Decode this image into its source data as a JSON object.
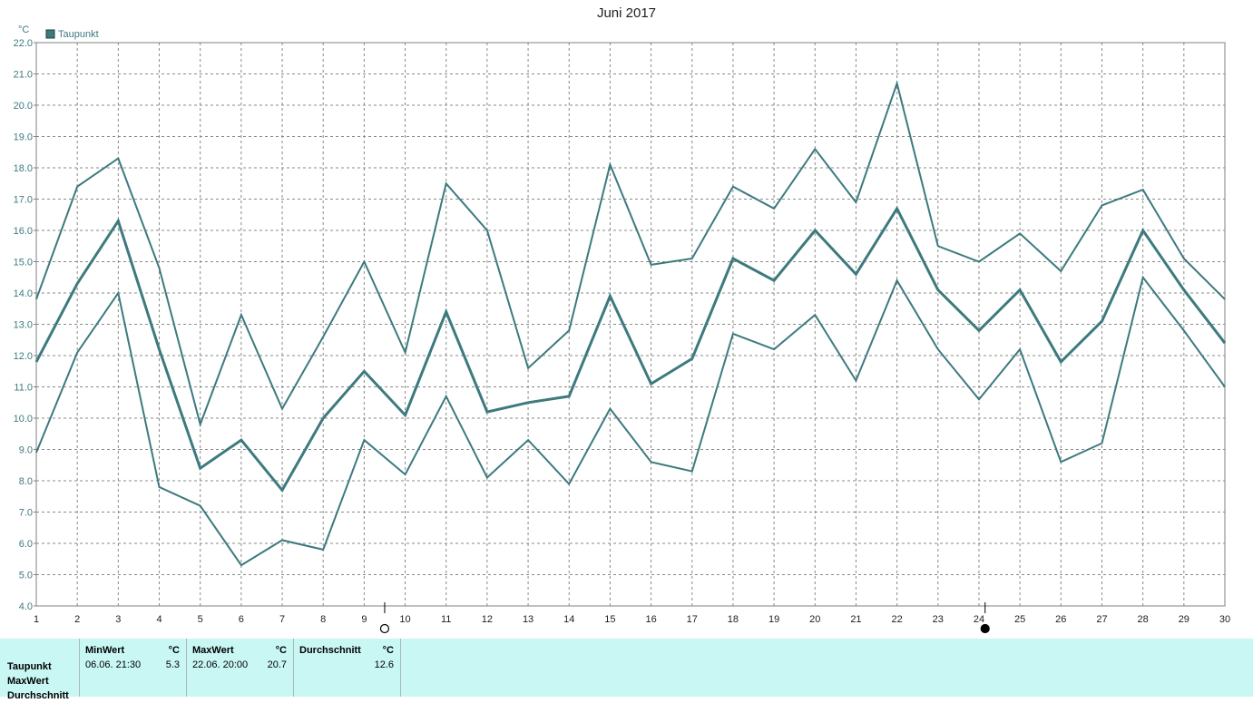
{
  "title": "Juni 2017",
  "chart_data": {
    "type": "line",
    "y_unit": "°C",
    "legend": "Taupunkt",
    "legend_position": "top-left",
    "grid": true,
    "x": [
      1,
      2,
      3,
      4,
      5,
      6,
      7,
      8,
      9,
      10,
      11,
      12,
      13,
      14,
      15,
      16,
      17,
      18,
      19,
      20,
      21,
      22,
      23,
      24,
      25,
      26,
      27,
      28,
      29,
      30
    ],
    "ylim": [
      4.0,
      22.0
    ],
    "yticks": [
      "4.0",
      "5.0",
      "6.0",
      "7.0",
      "8.0",
      "9.0",
      "10.0",
      "11.0",
      "12.0",
      "13.0",
      "14.0",
      "15.0",
      "16.0",
      "17.0",
      "18.0",
      "19.0",
      "20.0",
      "21.0",
      "22.0"
    ],
    "series": [
      {
        "role": "max",
        "color": "#3d7a7e",
        "values": [
          13.8,
          17.4,
          18.3,
          14.8,
          9.8,
          13.3,
          10.3,
          12.6,
          15.0,
          12.1,
          17.5,
          16.0,
          11.6,
          12.8,
          18.1,
          14.9,
          15.1,
          17.4,
          16.7,
          18.6,
          16.9,
          20.7,
          15.5,
          15.0,
          15.9,
          14.7,
          16.8,
          17.3,
          15.1,
          13.8
        ]
      },
      {
        "role": "avg",
        "color": "#3d7a7e",
        "values": [
          11.8,
          14.3,
          16.3,
          12.2,
          8.4,
          9.3,
          7.7,
          10.0,
          11.5,
          10.1,
          13.4,
          10.2,
          10.5,
          10.7,
          13.9,
          11.1,
          11.9,
          15.1,
          14.4,
          16.0,
          14.6,
          16.7,
          14.1,
          12.8,
          14.1,
          11.8,
          13.1,
          16.0,
          14.1,
          12.4
        ]
      },
      {
        "role": "min",
        "color": "#3d7a7e",
        "values": [
          8.9,
          12.1,
          14.0,
          7.8,
          7.2,
          5.3,
          6.1,
          5.8,
          9.3,
          8.2,
          10.7,
          8.1,
          9.3,
          7.9,
          10.3,
          8.6,
          8.3,
          12.7,
          12.2,
          13.3,
          11.2,
          14.4,
          12.2,
          10.6,
          12.2,
          8.6,
          9.2,
          14.5,
          12.8,
          11.0
        ]
      }
    ]
  },
  "moon_phases": [
    {
      "phase": "full-moon",
      "x": 9.5
    },
    {
      "phase": "new-moon",
      "x": 24.15
    }
  ],
  "stats": {
    "row_labels": [
      "Taupunkt",
      "MaxWert",
      "Durchschnitt"
    ],
    "min_header": "MinWert",
    "max_header": "MaxWert",
    "avg_header": "Durchschnitt",
    "unit": "°C",
    "min_when": "06.06.  21:30",
    "min_value": "5.3",
    "max_when": "22.06.  20:00",
    "max_value": "20.7",
    "avg_value": "12.6"
  }
}
